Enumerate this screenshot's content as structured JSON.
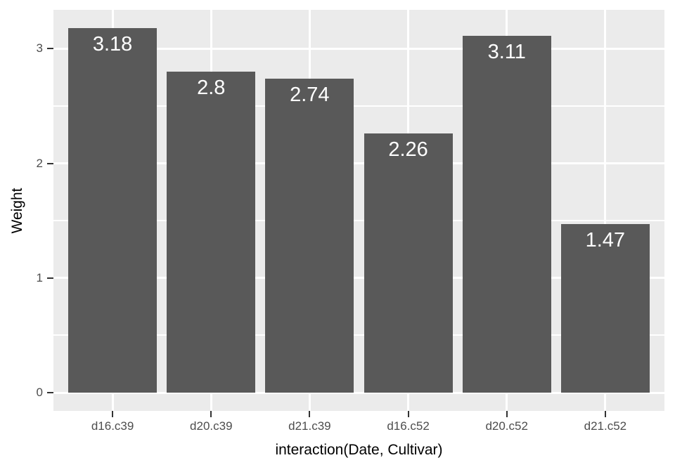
{
  "chart_data": {
    "type": "bar",
    "title": "",
    "xlabel": "interaction(Date, Cultivar)",
    "ylabel": "Weight",
    "categories": [
      "d16.c39",
      "d20.c39",
      "d21.c39",
      "d16.c52",
      "d20.c52",
      "d21.c52"
    ],
    "values": [
      3.18,
      2.8,
      2.74,
      2.26,
      3.11,
      1.47
    ],
    "value_labels": [
      "3.18",
      "2.8",
      "2.74",
      "2.26",
      "3.11",
      "1.47"
    ],
    "y_ticks": [
      0,
      1,
      2,
      3
    ],
    "y_tick_labels": [
      "0",
      "1",
      "2",
      "3"
    ],
    "y_minor_ticks": [
      0.5,
      1.5,
      2.5
    ],
    "ylim": [
      -0.159,
      3.339
    ],
    "bar_width_fraction": 0.9,
    "discrete_axis_expansion": 0.6,
    "grid": true,
    "legend_position": "none",
    "colors": {
      "background": "#FFFFFF",
      "panel_background": "#EBEBEB",
      "gridline": "#FFFFFF",
      "bar_fill": "#595959",
      "bar_value_text": "#FFFFFF",
      "axis_text": "#4D4D4D",
      "axis_title_text": "#000000",
      "tick_mark": "#333333"
    }
  }
}
